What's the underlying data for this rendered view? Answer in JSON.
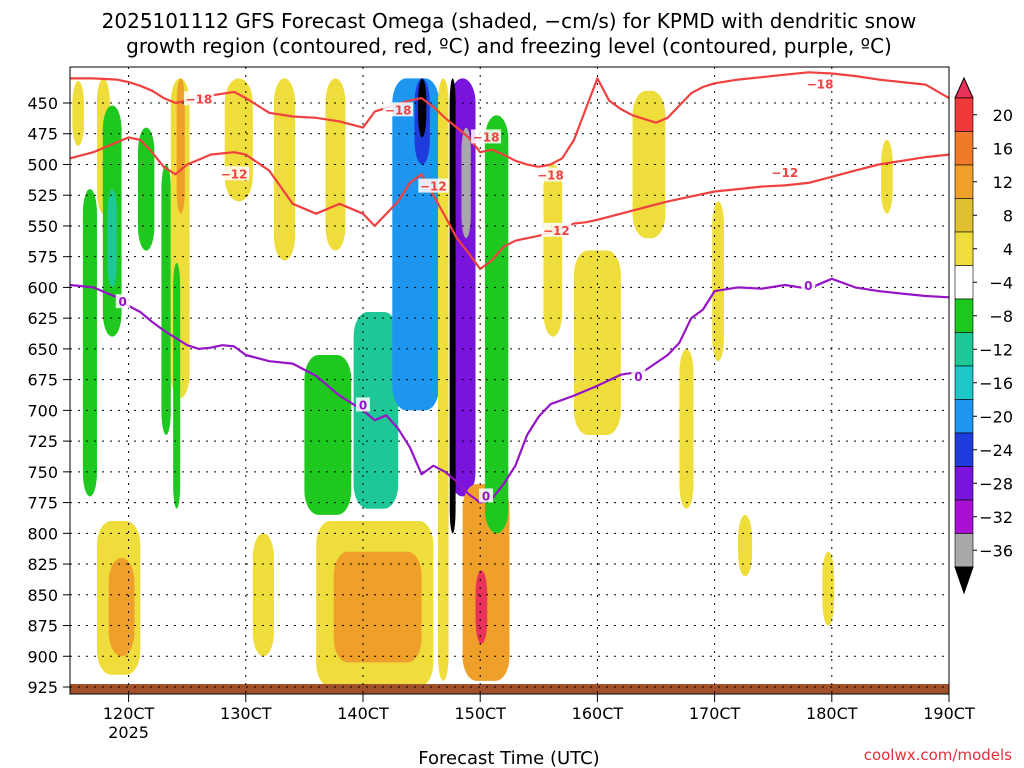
{
  "chart_data": {
    "type": "heatmap",
    "title_line1": "2025101112 GFS Forecast Omega (shaded, −cm/s) for KPMD with dendritic snow",
    "title_line2": "growth region (contoured, red, ºC) and freezing level (contoured, purple, ºC)",
    "xlabel": "Forecast Time (UTC)",
    "credit": "coolwx.com/models",
    "x_range": [
      115,
      190
    ],
    "x_ticks": [
      {
        "value": 120,
        "label": "120CT"
      },
      {
        "value": 130,
        "label": "130CT"
      },
      {
        "value": 140,
        "label": "140CT"
      },
      {
        "value": 150,
        "label": "150CT"
      },
      {
        "value": 160,
        "label": "160CT"
      },
      {
        "value": 170,
        "label": "170CT"
      },
      {
        "value": 180,
        "label": "180CT"
      },
      {
        "value": 190,
        "label": "190CT"
      }
    ],
    "x_sublabel": {
      "value": 120,
      "label": "2025"
    },
    "y_range": [
      430,
      935
    ],
    "y_ticks": [
      450,
      475,
      500,
      525,
      550,
      575,
      600,
      625,
      650,
      675,
      700,
      725,
      750,
      775,
      800,
      825,
      850,
      875,
      900,
      925
    ],
    "colorbar": {
      "ticks": [
        "20",
        "16",
        "12",
        "8",
        "4",
        "−4",
        "−8",
        "−12",
        "−16",
        "−20",
        "−24",
        "−28",
        "−32",
        "−36"
      ],
      "colors": [
        "#e8325a",
        "#f03a3a",
        "#f07a2a",
        "#eea02a",
        "#e0c030",
        "#eedd3a",
        "#ffffff",
        "#1ec81e",
        "#1ec896",
        "#1ec8c8",
        "#1e96f0",
        "#1e3cdc",
        "#7814dc",
        "#aa10d2",
        "#a8a8a8",
        "#000000"
      ]
    },
    "contours": [
      {
        "name": "dgz-minus18",
        "label": "−18",
        "color": "#f04040",
        "x": [
          115,
          117,
          119,
          120,
          121,
          122,
          123,
          124,
          125,
          127,
          129,
          130,
          132,
          134,
          136,
          138,
          140,
          141,
          142,
          143,
          144,
          145,
          146,
          147,
          148,
          149,
          150,
          151,
          152,
          153,
          154,
          155,
          156,
          157,
          158,
          159,
          160,
          161,
          162,
          163,
          164,
          165,
          166,
          167,
          168,
          169,
          170,
          172,
          174,
          176,
          178,
          180,
          182,
          184,
          186,
          188,
          190
        ],
        "p": [
          430,
          430,
          431,
          433,
          436,
          440,
          446,
          450,
          448,
          444,
          441,
          446,
          458,
          461,
          462,
          465,
          470,
          457,
          454,
          451,
          448,
          446,
          453,
          462,
          470,
          478,
          490,
          488,
          492,
          497,
          500,
          502,
          500,
          495,
          480,
          455,
          430,
          448,
          455,
          460,
          463,
          466,
          462,
          452,
          442,
          437,
          434,
          431,
          429,
          427,
          425,
          426,
          428,
          431,
          433,
          435,
          446
        ],
        "labels": [
          {
            "x": 126,
            "p": 447,
            "text": "−18"
          },
          {
            "x": 143,
            "p": 456,
            "text": "−18"
          },
          {
            "x": 150.5,
            "p": 478,
            "text": "−18"
          },
          {
            "x": 156,
            "p": 509,
            "text": "−18"
          },
          {
            "x": 179,
            "p": 435,
            "text": "−18"
          }
        ]
      },
      {
        "name": "dgz-minus12",
        "label": "−12",
        "color": "#f04040",
        "x": [
          115,
          117,
          119,
          120,
          121,
          122,
          123,
          124,
          125,
          126,
          127,
          129,
          130,
          132,
          134,
          136,
          138,
          140,
          141,
          142,
          143,
          144,
          145,
          146,
          147,
          148,
          149,
          150,
          151,
          152,
          153,
          154,
          155,
          156,
          157,
          158,
          159,
          160,
          162,
          164,
          166,
          168,
          170,
          172,
          174,
          176,
          178,
          180,
          182,
          184,
          186,
          188,
          190
        ],
        "p": [
          495,
          490,
          482,
          478,
          480,
          490,
          502,
          508,
          500,
          496,
          492,
          490,
          492,
          505,
          532,
          540,
          532,
          540,
          550,
          540,
          530,
          515,
          508,
          525,
          542,
          560,
          572,
          585,
          578,
          567,
          562,
          560,
          558,
          555,
          552,
          548,
          547,
          545,
          540,
          535,
          530,
          526,
          522,
          520,
          518,
          517,
          515,
          510,
          505,
          500,
          497,
          494,
          492
        ],
        "labels": [
          {
            "x": 129,
            "p": 508,
            "text": "−12"
          },
          {
            "x": 146,
            "p": 518,
            "text": "−12"
          },
          {
            "x": 156.5,
            "p": 554,
            "text": "−12"
          },
          {
            "x": 176,
            "p": 507,
            "text": "−12"
          }
        ]
      },
      {
        "name": "freezing-level-0C",
        "label": "0",
        "color": "#9614c8",
        "x": [
          115,
          117,
          119,
          120,
          121,
          122,
          123,
          124,
          125,
          126,
          127,
          128,
          129,
          130,
          132,
          134,
          136,
          138,
          140,
          141,
          142,
          143,
          144,
          145,
          146,
          147,
          148,
          149,
          150,
          151,
          152,
          153,
          154,
          155,
          156,
          158,
          160,
          162,
          164,
          166,
          167,
          168,
          169,
          170,
          172,
          174,
          176,
          178,
          180,
          182,
          184,
          186,
          188,
          190
        ],
        "p": [
          598,
          600,
          608,
          615,
          620,
          628,
          635,
          641,
          647,
          650,
          649,
          647,
          648,
          655,
          660,
          662,
          672,
          688,
          700,
          708,
          704,
          715,
          730,
          752,
          745,
          750,
          758,
          768,
          775,
          772,
          760,
          745,
          720,
          705,
          695,
          688,
          680,
          671,
          668,
          655,
          645,
          625,
          618,
          603,
          600,
          601,
          598,
          601,
          593,
          600,
          603,
          605,
          607,
          608
        ],
        "labels": [
          {
            "x": 119.5,
            "p": 612,
            "text": "0"
          },
          {
            "x": 140,
            "p": 696,
            "text": "0"
          },
          {
            "x": 150.5,
            "p": 770,
            "text": "0"
          },
          {
            "x": 163.5,
            "p": 673,
            "text": "0"
          },
          {
            "x": 178,
            "p": 599,
            "text": "0"
          }
        ]
      }
    ],
    "omega_features": [
      {
        "name": "tall-yellow-115",
        "x0": 115.2,
        "x1": 116.2,
        "p0": 432,
        "p1": 485,
        "level": "+4"
      },
      {
        "name": "green-ribbon-116",
        "x0": 116.1,
        "x1": 117.3,
        "p0": 520,
        "p1": 770,
        "level": "-4"
      },
      {
        "name": "yellow-column-118",
        "x0": 117.3,
        "x1": 118.4,
        "p0": 430,
        "p1": 540,
        "level": "+4"
      },
      {
        "name": "green-column-118",
        "x0": 117.8,
        "x1": 119.4,
        "p0": 452,
        "p1": 640,
        "level": "-4"
      },
      {
        "name": "teal-core-118",
        "x0": 118.2,
        "x1": 119.0,
        "p0": 520,
        "p1": 600,
        "level": "-8"
      },
      {
        "name": "green-column-121",
        "x0": 120.8,
        "x1": 122.2,
        "p0": 470,
        "p1": 570,
        "level": "-4"
      },
      {
        "name": "green-column-123",
        "x0": 122.8,
        "x1": 123.6,
        "p0": 500,
        "p1": 720,
        "level": "-4"
      },
      {
        "name": "yellow-column-124",
        "x0": 123.6,
        "x1": 125.2,
        "p0": 430,
        "p1": 690,
        "level": "+4"
      },
      {
        "name": "orange-core-124",
        "x0": 124.1,
        "x1": 124.8,
        "p0": 430,
        "p1": 540,
        "level": "+8"
      },
      {
        "name": "green-column-124",
        "x0": 123.8,
        "x1": 124.4,
        "p0": 580,
        "p1": 780,
        "level": "-4"
      },
      {
        "name": "yellow-low-119",
        "x0": 117.3,
        "x1": 121.0,
        "p0": 790,
        "p1": 915,
        "level": "+4"
      },
      {
        "name": "orange-low-120",
        "x0": 118.3,
        "x1": 120.5,
        "p0": 820,
        "p1": 900,
        "level": "+8"
      },
      {
        "name": "yellow-column-129",
        "x0": 128.2,
        "x1": 130.6,
        "p0": 430,
        "p1": 530,
        "level": "+4"
      },
      {
        "name": "yellow-column-133",
        "x0": 132.4,
        "x1": 134.2,
        "p0": 430,
        "p1": 578,
        "level": "+4"
      },
      {
        "name": "yellow-column-137",
        "x0": 136.8,
        "x1": 138.5,
        "p0": 430,
        "p1": 570,
        "level": "+4"
      },
      {
        "name": "yellow-low-131",
        "x0": 130.6,
        "x1": 132.4,
        "p0": 800,
        "p1": 900,
        "level": "+4"
      },
      {
        "name": "yellow-low-139",
        "x0": 136.0,
        "x1": 146.0,
        "p0": 790,
        "p1": 925,
        "level": "+4"
      },
      {
        "name": "orange-low-140",
        "x0": 137.5,
        "x1": 145.0,
        "p0": 815,
        "p1": 905,
        "level": "+8"
      },
      {
        "name": "green-blob-136",
        "x0": 135.0,
        "x1": 139.0,
        "p0": 655,
        "p1": 785,
        "level": "-4"
      },
      {
        "name": "teal-blob-140",
        "x0": 139.2,
        "x1": 143.0,
        "p0": 620,
        "p1": 780,
        "level": "-8"
      },
      {
        "name": "blue-plume-144",
        "x0": 142.5,
        "x1": 146.5,
        "p0": 430,
        "p1": 700,
        "level": "-12"
      },
      {
        "name": "navy-core-145",
        "x0": 144.4,
        "x1": 145.7,
        "p0": 430,
        "p1": 500,
        "level": "-20"
      },
      {
        "name": "black-core-145",
        "x0": 144.7,
        "x1": 145.4,
        "p0": 430,
        "p1": 478,
        "level": "-36"
      },
      {
        "name": "yellow-column-147",
        "x0": 146.4,
        "x1": 147.3,
        "p0": 430,
        "p1": 920,
        "level": "+4"
      },
      {
        "name": "purple-plume-148",
        "x0": 147.4,
        "x1": 149.6,
        "p0": 430,
        "p1": 770,
        "level": "-24"
      },
      {
        "name": "black-line-147",
        "x0": 147.4,
        "x1": 147.9,
        "p0": 430,
        "p1": 800,
        "level": "-36"
      },
      {
        "name": "gray-core-149",
        "x0": 148.4,
        "x1": 149.2,
        "p0": 470,
        "p1": 560,
        "level": "-32"
      },
      {
        "name": "orange-plume-150",
        "x0": 148.5,
        "x1": 152.5,
        "p0": 760,
        "p1": 920,
        "level": "+8"
      },
      {
        "name": "magenta-core-150",
        "x0": 149.6,
        "x1": 150.6,
        "p0": 830,
        "p1": 890,
        "level": "+20"
      },
      {
        "name": "green-column-151",
        "x0": 150.4,
        "x1": 152.4,
        "p0": 460,
        "p1": 800,
        "level": "-4"
      },
      {
        "name": "yellow-column-156",
        "x0": 155.4,
        "x1": 157.0,
        "p0": 500,
        "p1": 640,
        "level": "+4"
      },
      {
        "name": "yellow-blob-160",
        "x0": 158.0,
        "x1": 162.0,
        "p0": 570,
        "p1": 720,
        "level": "+4"
      },
      {
        "name": "yellow-column-164",
        "x0": 163.0,
        "x1": 165.8,
        "p0": 440,
        "p1": 560,
        "level": "+4"
      },
      {
        "name": "yellow-column-168",
        "x0": 167.0,
        "x1": 168.2,
        "p0": 650,
        "p1": 780,
        "level": "+4"
      },
      {
        "name": "yellow-column-170",
        "x0": 169.8,
        "x1": 170.8,
        "p0": 530,
        "p1": 660,
        "level": "+4"
      },
      {
        "name": "yellow-column-185",
        "x0": 184.2,
        "x1": 185.2,
        "p0": 480,
        "p1": 540,
        "level": "+4"
      },
      {
        "name": "yellow-low-172",
        "x0": 172.0,
        "x1": 173.2,
        "p0": 785,
        "p1": 835,
        "level": "+4"
      },
      {
        "name": "yellow-low-180",
        "x0": 179.2,
        "x1": 180.2,
        "p0": 815,
        "p1": 875,
        "level": "+4"
      }
    ]
  }
}
